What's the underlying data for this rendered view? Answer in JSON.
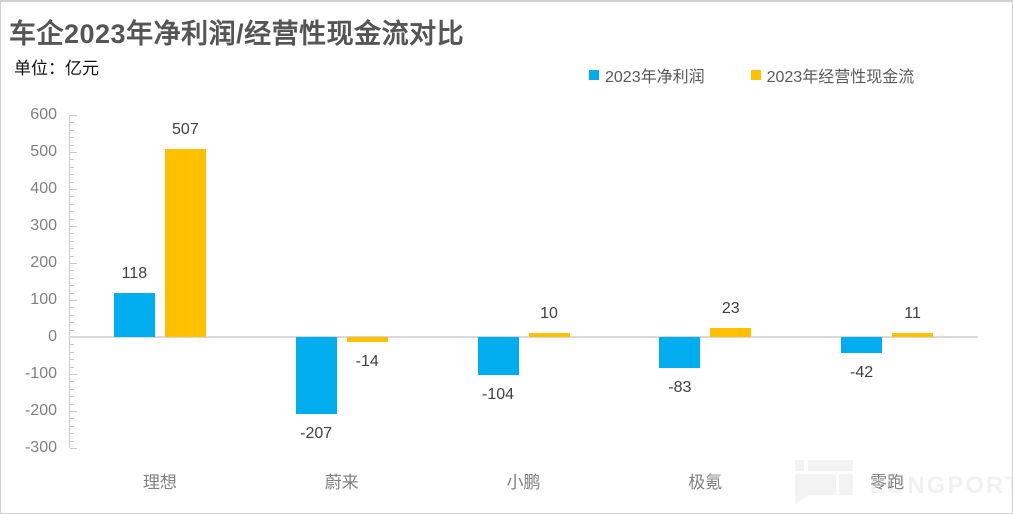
{
  "header": {
    "title": "车企2023年净利润/经营性现金流对比",
    "unit_label": "单位：亿元"
  },
  "chart_data": {
    "type": "bar",
    "title": "车企2023年净利润/经营性现金流对比",
    "unit": "亿元",
    "categories": [
      "理想",
      "蔚来",
      "小鹏",
      "极氪",
      "零跑"
    ],
    "series": [
      {
        "name": "2023年净利润",
        "color": "#00ADEE",
        "values": [
          118,
          -207,
          -104,
          -83,
          -42
        ]
      },
      {
        "name": "2023年经营性现金流",
        "color": "#FFC000",
        "values": [
          507,
          -14,
          10,
          23,
          11
        ]
      }
    ],
    "ylim": [
      -300,
      600
    ],
    "yticks": [
      600,
      500,
      400,
      300,
      200,
      100,
      0,
      -100,
      -200,
      -300
    ],
    "ytick_minor_step": 20,
    "grid": false,
    "legend_position": "top-right",
    "axis_color": "#c9c9c9",
    "zero_line_color": "#d9d9d9"
  },
  "watermark": {
    "text": "LONGPORT"
  }
}
